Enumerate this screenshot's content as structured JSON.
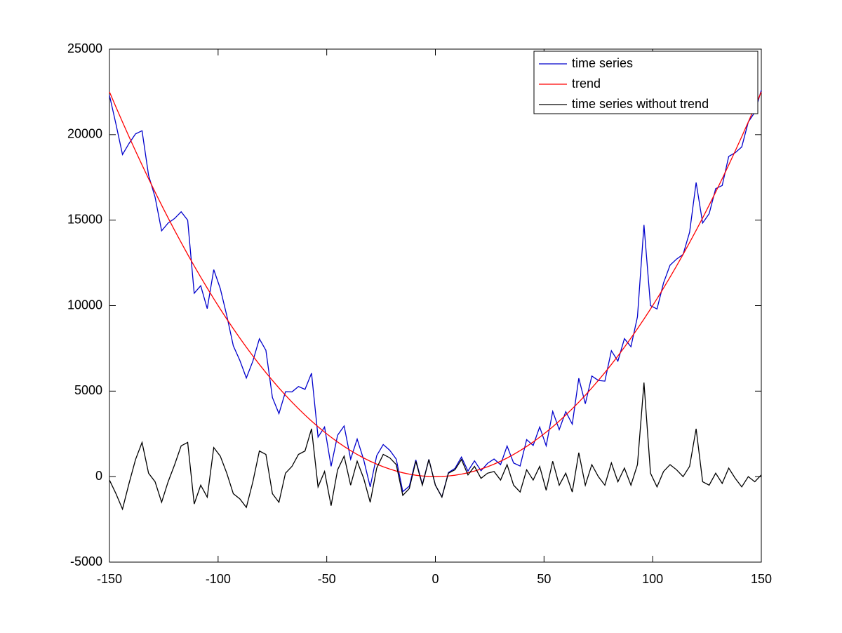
{
  "chart_data": {
    "type": "line",
    "x": [
      -150,
      -147,
      -144,
      -141,
      -138,
      -135,
      -132,
      -129,
      -126,
      -123,
      -120,
      -117,
      -114,
      -111,
      -108,
      -105,
      -102,
      -99,
      -96,
      -93,
      -90,
      -87,
      -84,
      -81,
      -78,
      -75,
      -72,
      -69,
      -66,
      -63,
      -60,
      -57,
      -54,
      -51,
      -48,
      -45,
      -42,
      -39,
      -36,
      -33,
      -30,
      -27,
      -24,
      -21,
      -18,
      -15,
      -12,
      -9,
      -6,
      -3,
      0,
      3,
      6,
      9,
      12,
      15,
      18,
      21,
      24,
      27,
      30,
      33,
      36,
      39,
      42,
      45,
      48,
      51,
      54,
      57,
      60,
      63,
      66,
      69,
      72,
      75,
      78,
      81,
      84,
      87,
      90,
      93,
      96,
      99,
      102,
      105,
      108,
      111,
      114,
      117,
      120,
      123,
      126,
      129,
      132,
      135,
      138,
      141,
      144,
      147,
      150
    ],
    "series": [
      {
        "name": "time series",
        "color": "#0000cc",
        "values": [
          22300,
          20609,
          18836,
          19481,
          20044,
          20225,
          17624,
          16341,
          14376,
          14829,
          15100,
          15489,
          14996,
          10721,
          11164,
          9825,
          12104,
          11001,
          9416,
          7649,
          6800,
          5769,
          6756,
          8061,
          7384,
          4625,
          3684,
          4961,
          4956,
          5269,
          5100,
          6049,
          2316,
          2901,
          604,
          2425,
          2964,
          1021,
          2196,
          989,
          -600,
          1229,
          1876,
          1541,
          1024,
          -875,
          -556,
          981,
          -464,
          1009,
          -500,
          -1191,
          236,
          481,
          1144,
          325,
          924,
          341,
          776,
          1029,
          700,
          1789,
          796,
          621,
          2164,
          1825,
          2904,
          1801,
          3816,
          2749,
          3800,
          3069,
          5756,
          4261,
          5884,
          5625,
          5584,
          7361,
          6756,
          8069,
          7600,
          9349,
          14716,
          10001,
          9804,
          11325,
          12364,
          12721,
          12996,
          14289,
          17200,
          14829,
          15376,
          16841,
          17024,
          18725,
          18944,
          19281,
          20736,
          21309,
          22600
        ]
      },
      {
        "name": "trend",
        "color": "#ff0000",
        "values": [
          22500,
          21609,
          20736,
          19881,
          19044,
          18225,
          17424,
          16641,
          15876,
          15129,
          14400,
          13689,
          12996,
          12321,
          11664,
          11025,
          10404,
          9801,
          9216,
          8649,
          8100,
          7569,
          7056,
          6561,
          6084,
          5625,
          5184,
          4761,
          4356,
          3969,
          3600,
          3249,
          2916,
          2601,
          2304,
          2025,
          1764,
          1521,
          1296,
          1089,
          900,
          729,
          576,
          441,
          324,
          225,
          144,
          81,
          36,
          9,
          0,
          9,
          36,
          81,
          144,
          225,
          324,
          441,
          576,
          729,
          900,
          1089,
          1296,
          1521,
          1764,
          2025,
          2304,
          2601,
          2916,
          3249,
          3600,
          3969,
          4356,
          4761,
          5184,
          5625,
          6084,
          6561,
          7056,
          7569,
          8100,
          8649,
          9216,
          9801,
          10404,
          11025,
          11664,
          12321,
          12996,
          13689,
          14400,
          15129,
          15876,
          16641,
          17424,
          18225,
          19044,
          19881,
          20736,
          21609,
          22500
        ]
      },
      {
        "name": "time series without trend",
        "color": "#000000",
        "values": [
          -200,
          -1000,
          -1900,
          -400,
          1000,
          2000,
          200,
          -300,
          -1500,
          -300,
          700,
          1800,
          2000,
          -1600,
          -500,
          -1200,
          1700,
          1200,
          200,
          -1000,
          -1300,
          -1800,
          -300,
          1500,
          1300,
          -1000,
          -1500,
          200,
          600,
          1300,
          1500,
          2800,
          -600,
          300,
          -1700,
          400,
          1200,
          -500,
          900,
          -100,
          -1500,
          500,
          1300,
          1100,
          700,
          -1100,
          -700,
          900,
          -500,
          1000,
          -500,
          -1200,
          200,
          400,
          1000,
          100,
          600,
          -100,
          200,
          300,
          -200,
          700,
          -500,
          -900,
          400,
          -200,
          600,
          -800,
          900,
          -500,
          200,
          -900,
          1400,
          -500,
          700,
          0,
          -500,
          800,
          -300,
          500,
          -500,
          700,
          5500,
          200,
          -600,
          300,
          700,
          400,
          0,
          600,
          2800,
          -300,
          -500,
          200,
          -400,
          500,
          -100,
          -600,
          0,
          -300,
          100
        ]
      }
    ],
    "xlim": [
      -150,
      150
    ],
    "xticks": [
      -150,
      -100,
      -50,
      0,
      50,
      100,
      150
    ],
    "ylim": [
      -5000,
      25000
    ],
    "yticks": [
      -5000,
      0,
      5000,
      10000,
      15000,
      20000,
      25000
    ],
    "grid": false,
    "legend": "upper right"
  }
}
